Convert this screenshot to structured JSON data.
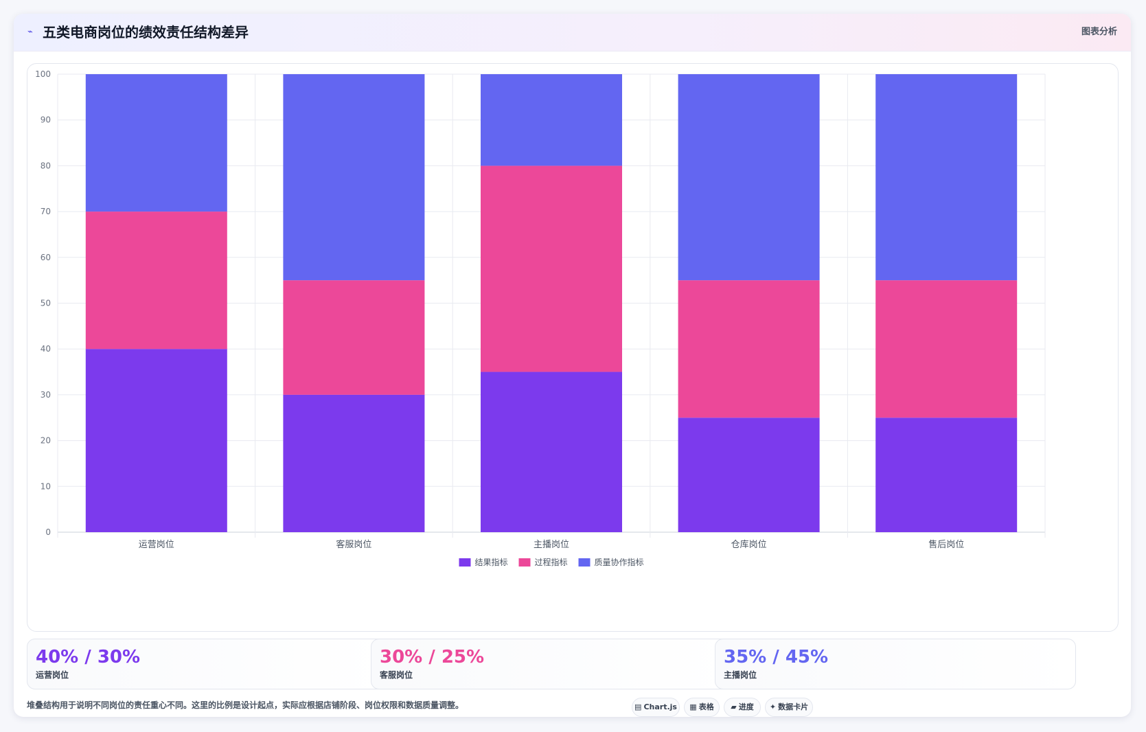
{
  "header": {
    "icon": "chart-line-icon",
    "title": "五类电商岗位的绩效责任结构差异",
    "tag": "图表分析"
  },
  "chart_data": {
    "type": "bar",
    "stacked": true,
    "categories": [
      "运营岗位",
      "客服岗位",
      "主播岗位",
      "仓库岗位",
      "售后岗位"
    ],
    "series": [
      {
        "name": "结果指标",
        "color": "#7c3aed",
        "values": [
          40,
          30,
          35,
          25,
          25
        ]
      },
      {
        "name": "过程指标",
        "color": "#ec4899",
        "values": [
          30,
          25,
          45,
          30,
          30
        ]
      },
      {
        "name": "质量协作指标",
        "color": "#6366f1",
        "values": [
          30,
          45,
          20,
          45,
          45
        ]
      }
    ],
    "ylim": [
      0,
      100
    ],
    "yticks": [
      0,
      10,
      20,
      30,
      40,
      50,
      60,
      70,
      80,
      90,
      100
    ],
    "grid": true,
    "legend": "bottom"
  },
  "stats": [
    {
      "value": "40% / 30%",
      "label": "运营岗位",
      "color": "#7c3aed"
    },
    {
      "value": "30% / 25%",
      "label": "客服岗位",
      "color": "#ec4899"
    },
    {
      "value": "35% / 45%",
      "label": "主播岗位",
      "color": "#6366f1"
    }
  ],
  "footnote": "堆叠结构用于说明不同岗位的责任重心不同。这里的比例是设计起点，实际应根据店铺阶段、岗位权限和数据质量调整。",
  "chips": [
    {
      "icon": "chart-icon",
      "glyph": "▤",
      "label": "Chart.js"
    },
    {
      "icon": "table-icon",
      "glyph": "▦",
      "label": "表格"
    },
    {
      "icon": "progress-icon",
      "glyph": "▰",
      "label": "进度"
    },
    {
      "icon": "sparkle-icon",
      "glyph": "✦",
      "label": "数据卡片"
    }
  ]
}
